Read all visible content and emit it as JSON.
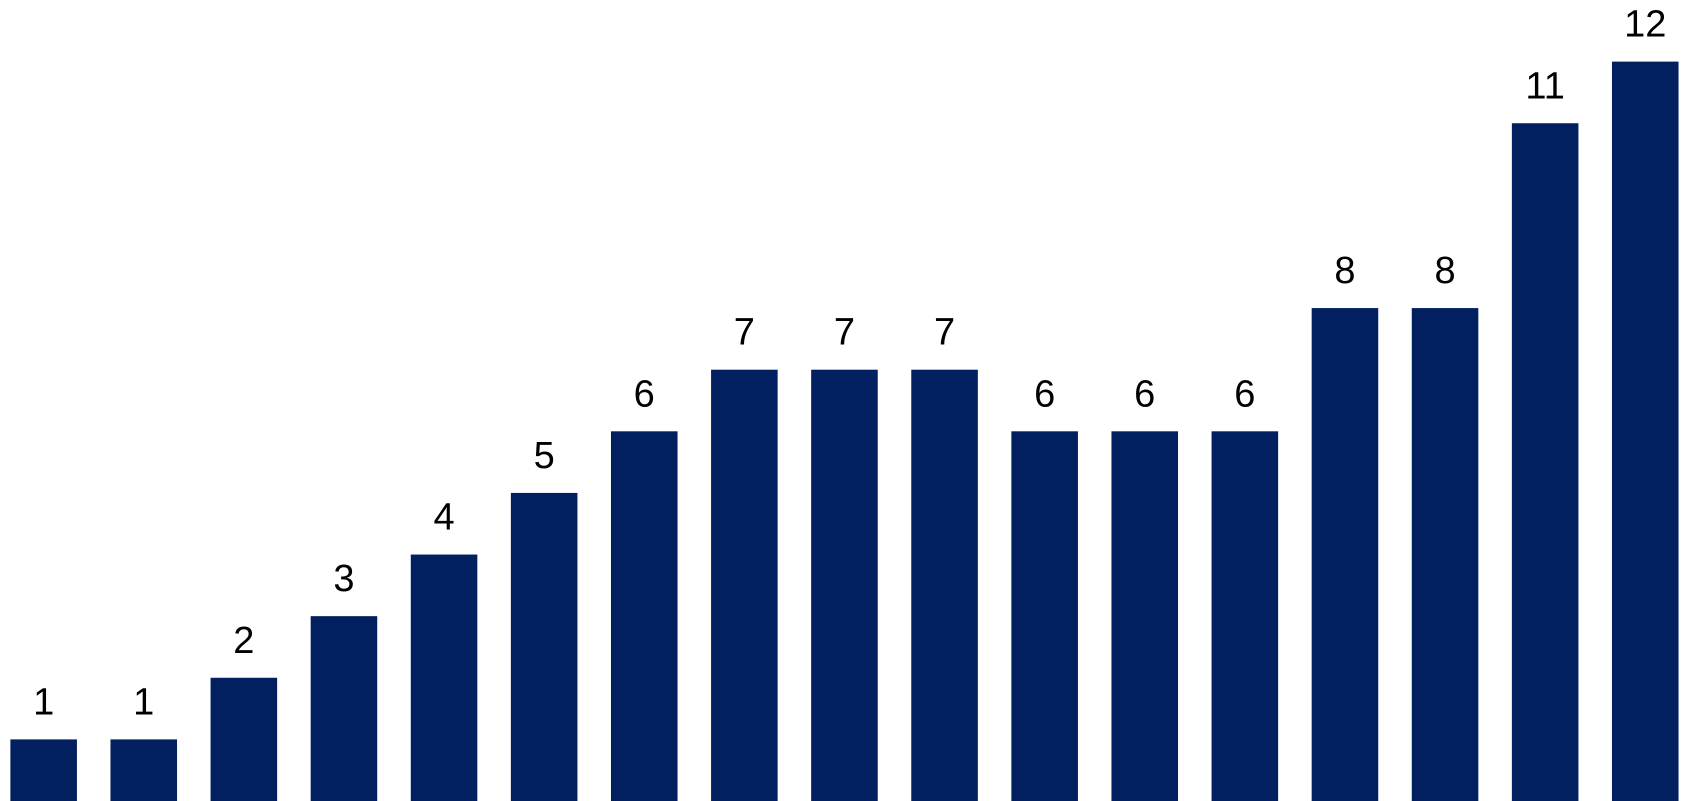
{
  "chart_data": {
    "type": "bar",
    "categories": [
      null,
      null,
      null,
      null,
      null,
      null,
      null,
      null,
      null,
      null,
      null,
      null,
      null,
      null,
      null,
      null,
      null
    ],
    "values": [
      1,
      1,
      2,
      3,
      4,
      5,
      6,
      7,
      7,
      7,
      6,
      6,
      6,
      8,
      8,
      11,
      12
    ],
    "color": "#022060",
    "ylim": [
      0,
      13
    ]
  }
}
